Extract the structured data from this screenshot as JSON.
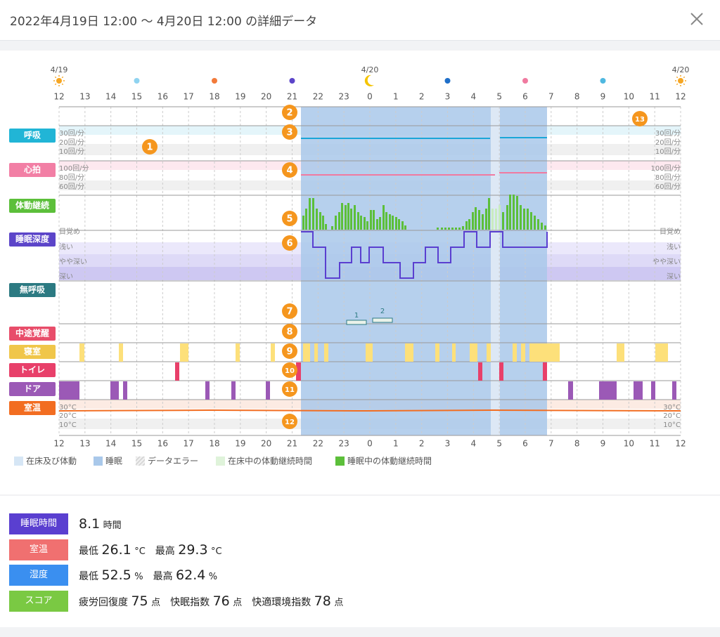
{
  "header": {
    "title": "2022年4月19日 12:00 〜 4月20日 12:00 の詳細データ"
  },
  "chart": {
    "date_labels": [
      "4/19",
      "4/20",
      "4/20"
    ],
    "hours": [
      "12",
      "13",
      "14",
      "15",
      "16",
      "17",
      "18",
      "19",
      "20",
      "21",
      "22",
      "23",
      "0",
      "1",
      "2",
      "3",
      "4",
      "5",
      "6",
      "7",
      "8",
      "9",
      "10",
      "11",
      "12"
    ],
    "rows": [
      "呼吸",
      "心拍",
      "体動継続",
      "睡眠深度",
      "無呼吸",
      "中途覚醒",
      "寝室",
      "トイレ",
      "ドア",
      "室温"
    ],
    "scales": {
      "breathing": [
        "30回/分",
        "20回/分",
        "10回/分"
      ],
      "heart": [
        "100回/分",
        "80回/分",
        "60回/分"
      ],
      "depth": [
        "目覚め",
        "浅い",
        "やや深い",
        "深い"
      ],
      "temperature": [
        "30°C",
        "20°C",
        "10°C"
      ]
    },
    "markers": [
      "1",
      "2",
      "3",
      "4",
      "5",
      "6",
      "7",
      "8",
      "9",
      "10",
      "11",
      "12",
      "13"
    ],
    "apnea": [
      "1",
      "2"
    ],
    "legend": [
      "在床及び体動",
      "睡眠",
      "データエラー",
      "在床中の体動継続時間",
      "睡眠中の体動継続時間"
    ]
  },
  "summary": [
    {
      "label": "睡眠時間",
      "items": [
        {
          "value": "8.1",
          "unit": "時間"
        }
      ]
    },
    {
      "label": "室温",
      "items": [
        {
          "prefix": "最低",
          "value": "26.1",
          "unit": "°C"
        },
        {
          "prefix": "最高",
          "value": "29.3",
          "unit": "°C"
        }
      ]
    },
    {
      "label": "湿度",
      "items": [
        {
          "prefix": "最低",
          "value": "52.5",
          "unit": "%"
        },
        {
          "prefix": "最高",
          "value": "62.4",
          "unit": "%"
        }
      ]
    },
    {
      "label": "スコア",
      "items": [
        {
          "prefix": "疲労回復度",
          "value": "75",
          "unit": "点"
        },
        {
          "prefix": "快眠指数",
          "value": "76",
          "unit": "点"
        },
        {
          "prefix": "快適環境指数",
          "value": "78",
          "unit": "点"
        }
      ]
    }
  ]
}
